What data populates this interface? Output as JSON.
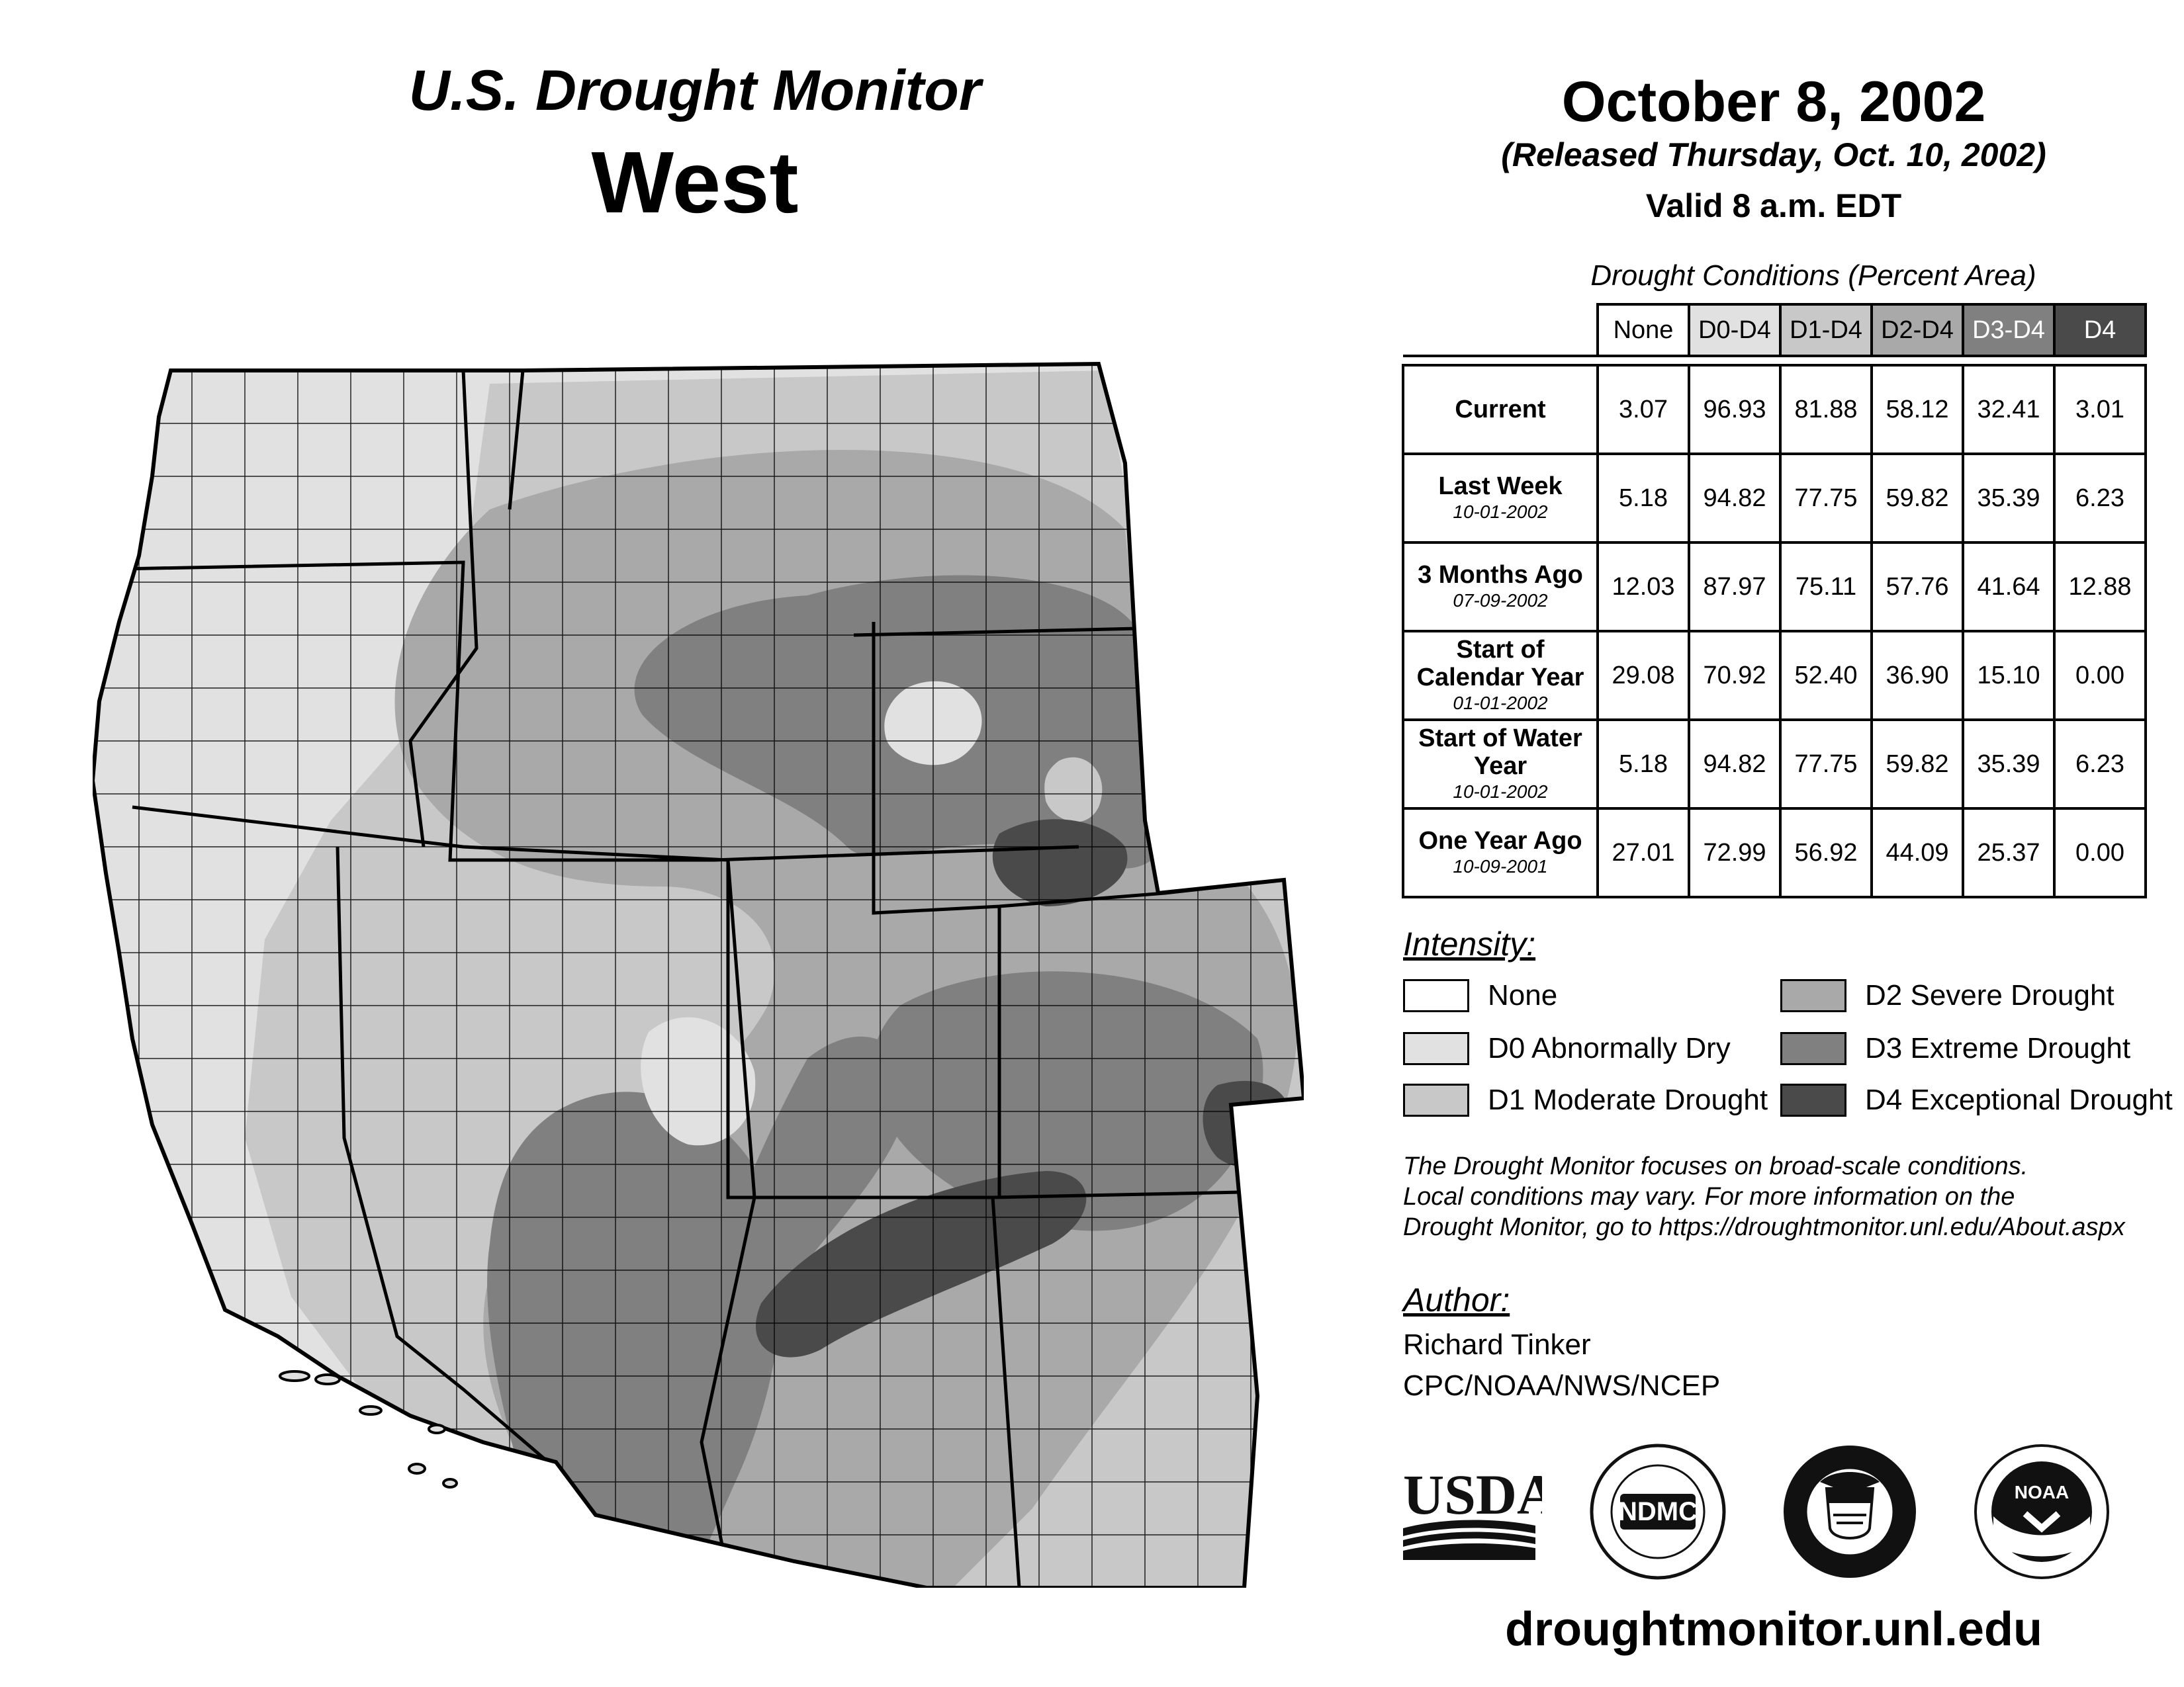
{
  "header": {
    "title": "U.S. Drought Monitor",
    "region": "West",
    "date": "October 8, 2002",
    "released": "(Released Thursday, Oct. 10, 2002)",
    "valid": "Valid 8 a.m. EDT"
  },
  "table": {
    "caption": "Drought Conditions (Percent Area)",
    "columns": [
      "None",
      "D0-D4",
      "D1-D4",
      "D2-D4",
      "D3-D4",
      "D4"
    ],
    "rows": [
      {
        "label": "Current",
        "sub_label": "",
        "values": [
          "3.07",
          "96.93",
          "81.88",
          "58.12",
          "32.41",
          "3.01"
        ]
      },
      {
        "label": "Last Week",
        "sub_label": "10-01-2002",
        "values": [
          "5.18",
          "94.82",
          "77.75",
          "59.82",
          "35.39",
          "6.23"
        ]
      },
      {
        "label": "3 Months Ago",
        "sub_label": "07-09-2002",
        "values": [
          "12.03",
          "87.97",
          "75.11",
          "57.76",
          "41.64",
          "12.88"
        ]
      },
      {
        "label": "Start of Calendar Year",
        "sub_label": "01-01-2002",
        "values": [
          "29.08",
          "70.92",
          "52.40",
          "36.90",
          "15.10",
          "0.00"
        ]
      },
      {
        "label": "Start of Water Year",
        "sub_label": "10-01-2002",
        "values": [
          "5.18",
          "94.82",
          "77.75",
          "59.82",
          "35.39",
          "6.23"
        ]
      },
      {
        "label": "One Year Ago",
        "sub_label": "10-09-2001",
        "values": [
          "27.01",
          "72.99",
          "56.92",
          "44.09",
          "25.37",
          "0.00"
        ]
      }
    ]
  },
  "intensity": {
    "heading": "Intensity:",
    "items": [
      {
        "label": "None",
        "color": "#ffffff"
      },
      {
        "label": "D0 Abnormally Dry",
        "color": "#e1e1e1"
      },
      {
        "label": "D1 Moderate Drought",
        "color": "#c8c8c8"
      },
      {
        "label": "D2 Severe Drought",
        "color": "#a9a9a9"
      },
      {
        "label": "D3 Extreme Drought",
        "color": "#808080"
      },
      {
        "label": "D4 Exceptional Drought",
        "color": "#4a4a4a"
      }
    ]
  },
  "note": {
    "line1": "The Drought Monitor focuses on broad-scale conditions.",
    "line2": "Local conditions may vary. For more information on the",
    "line3": "Drought Monitor, go to https://droughtmonitor.unl.edu/About.aspx"
  },
  "author": {
    "heading": "Author:",
    "name": "Richard Tinker",
    "org": "CPC/NOAA/NWS/NCEP"
  },
  "logos": {
    "usda": "USDA",
    "ndmc": "NDMC",
    "noaa": "NOAA"
  },
  "website": "droughtmonitor.unl.edu"
}
